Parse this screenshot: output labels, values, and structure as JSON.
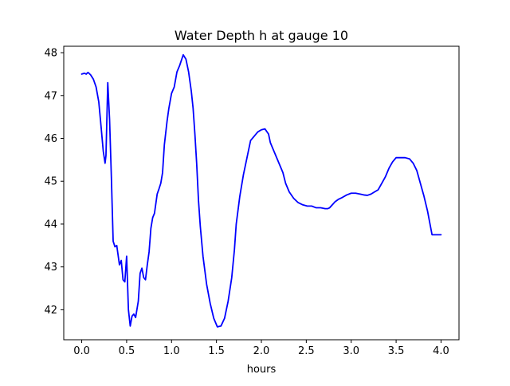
{
  "chart_data": {
    "type": "line",
    "title": "Water Depth h at gauge 10",
    "xlabel": "hours",
    "ylabel": "",
    "xlim": [
      -0.2,
      4.2
    ],
    "ylim": [
      41.3,
      48.15
    ],
    "grid": false,
    "legend": "none",
    "xticks": [
      0.0,
      0.5,
      1.0,
      1.5,
      2.0,
      2.5,
      3.0,
      3.5,
      4.0
    ],
    "xtick_labels": [
      "0.0",
      "0.5",
      "1.0",
      "1.5",
      "2.0",
      "2.5",
      "3.0",
      "3.5",
      "4.0"
    ],
    "yticks": [
      42,
      43,
      44,
      45,
      46,
      47,
      48
    ],
    "ytick_labels": [
      "42",
      "43",
      "44",
      "45",
      "46",
      "47",
      "48"
    ],
    "series": [
      {
        "color": "#0000ff",
        "x": [
          0.0,
          0.03,
          0.05,
          0.07,
          0.1,
          0.13,
          0.16,
          0.19,
          0.21,
          0.24,
          0.26,
          0.27,
          0.29,
          0.31,
          0.33,
          0.35,
          0.37,
          0.39,
          0.4,
          0.42,
          0.44,
          0.46,
          0.48,
          0.5,
          0.52,
          0.54,
          0.56,
          0.58,
          0.6,
          0.63,
          0.65,
          0.67,
          0.69,
          0.71,
          0.73,
          0.75,
          0.77,
          0.79,
          0.81,
          0.84,
          0.86,
          0.88,
          0.9,
          0.92,
          0.95,
          0.97,
          1.0,
          1.03,
          1.06,
          1.09,
          1.13,
          1.16,
          1.19,
          1.22,
          1.24,
          1.26,
          1.28,
          1.3,
          1.32,
          1.35,
          1.39,
          1.43,
          1.47,
          1.51,
          1.55,
          1.59,
          1.63,
          1.67,
          1.7,
          1.72,
          1.76,
          1.8,
          1.84,
          1.88,
          1.92,
          1.96,
          2.0,
          2.04,
          2.08,
          2.1,
          2.13,
          2.16,
          2.2,
          2.24,
          2.27,
          2.31,
          2.36,
          2.41,
          2.46,
          2.51,
          2.56,
          2.61,
          2.66,
          2.71,
          2.74,
          2.76,
          2.79,
          2.82,
          2.86,
          2.9,
          2.95,
          3.0,
          3.05,
          3.1,
          3.14,
          3.18,
          3.22,
          3.26,
          3.3,
          3.34,
          3.38,
          3.42,
          3.46,
          3.5,
          3.55,
          3.6,
          3.65,
          3.69,
          3.73,
          3.77,
          3.81,
          3.85,
          3.9,
          3.95,
          4.0
        ],
        "y": [
          47.5,
          47.52,
          47.5,
          47.54,
          47.48,
          47.38,
          47.2,
          46.85,
          46.4,
          45.7,
          45.42,
          45.6,
          47.3,
          46.45,
          45.1,
          43.6,
          43.47,
          43.5,
          43.35,
          43.05,
          43.15,
          42.7,
          42.65,
          43.25,
          42.0,
          41.62,
          41.85,
          41.9,
          41.82,
          42.2,
          42.85,
          42.97,
          42.75,
          42.7,
          43.05,
          43.35,
          43.9,
          44.15,
          44.25,
          44.7,
          44.82,
          44.95,
          45.2,
          45.85,
          46.4,
          46.7,
          47.05,
          47.2,
          47.55,
          47.7,
          47.95,
          47.85,
          47.55,
          47.1,
          46.7,
          46.1,
          45.4,
          44.55,
          43.95,
          43.25,
          42.6,
          42.15,
          41.8,
          41.6,
          41.62,
          41.8,
          42.2,
          42.75,
          43.4,
          44.0,
          44.65,
          45.15,
          45.55,
          45.95,
          46.05,
          46.15,
          46.2,
          46.22,
          46.1,
          45.9,
          45.75,
          45.6,
          45.4,
          45.2,
          44.95,
          44.75,
          44.6,
          44.5,
          44.45,
          44.42,
          44.42,
          44.38,
          44.38,
          44.36,
          44.36,
          44.38,
          44.45,
          44.52,
          44.58,
          44.62,
          44.68,
          44.72,
          44.72,
          44.7,
          44.68,
          44.67,
          44.7,
          44.75,
          44.8,
          44.95,
          45.1,
          45.3,
          45.45,
          45.55,
          45.55,
          45.55,
          45.52,
          45.42,
          45.25,
          44.95,
          44.65,
          44.3,
          43.75,
          43.75,
          43.75
        ]
      }
    ]
  }
}
